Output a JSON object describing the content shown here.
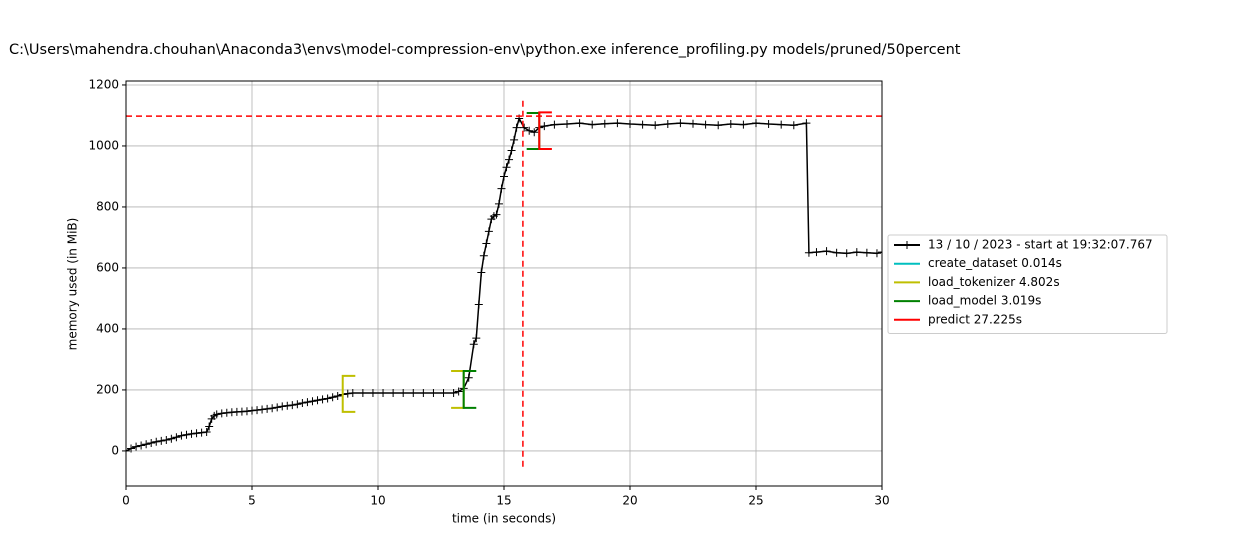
{
  "chart_data": {
    "type": "line",
    "title": "C:\\Users\\mahendra.chouhan\\Anaconda3\\envs\\model-compression-env\\python.exe inference_profiling.py models/pruned/50percent",
    "xlabel": "time (in seconds)",
    "ylabel": "memory used (in MiB)",
    "xlim": [
      0,
      30
    ],
    "ylim": [
      -115,
      1213
    ],
    "xticks": [
      0,
      5,
      10,
      15,
      20,
      25,
      30
    ],
    "yticks": [
      0,
      200,
      400,
      600,
      800,
      1000,
      1200
    ],
    "grid": true,
    "legend": "right",
    "series": [
      {
        "name": "13 / 10 / 2023 - start at 19:32:07.767",
        "color": "#000000",
        "marker": "+",
        "x": [
          0,
          0.2,
          0.4,
          0.6,
          0.8,
          1.0,
          1.2,
          1.4,
          1.6,
          1.8,
          2.0,
          2.2,
          2.4,
          2.6,
          2.8,
          3.0,
          3.2,
          3.3,
          3.4,
          3.5,
          3.6,
          3.8,
          4.0,
          4.2,
          4.4,
          4.6,
          4.8,
          5.0,
          5.2,
          5.4,
          5.6,
          5.8,
          6.0,
          6.2,
          6.4,
          6.6,
          6.8,
          7.0,
          7.2,
          7.4,
          7.6,
          7.8,
          8.0,
          8.2,
          8.4,
          8.6,
          8.8,
          9.0,
          9.4,
          9.8,
          10.2,
          10.6,
          11.0,
          11.4,
          11.8,
          12.2,
          12.6,
          13.0,
          13.2,
          13.4,
          13.6,
          13.8,
          13.9,
          14.0,
          14.1,
          14.2,
          14.3,
          14.4,
          14.5,
          14.6,
          14.7,
          14.8,
          14.9,
          15.0,
          15.1,
          15.2,
          15.3,
          15.4,
          15.5,
          15.6,
          15.8,
          16.0,
          16.2,
          16.4,
          16.6,
          17.0,
          17.5,
          18,
          18.5,
          19,
          19.5,
          20,
          20.5,
          21,
          21.5,
          22,
          22.5,
          23,
          23.5,
          24,
          24.5,
          25,
          25.5,
          26,
          26.5,
          27,
          27.1,
          27.4,
          27.8,
          28.2,
          28.6,
          29,
          29.4,
          29.8,
          30
        ],
        "values": [
          0,
          8,
          14,
          18,
          22,
          26,
          30,
          33,
          36,
          40,
          45,
          50,
          53,
          56,
          58,
          60,
          62,
          80,
          105,
          115,
          120,
          123,
          125,
          127,
          128,
          129,
          130,
          132,
          134,
          136,
          138,
          140,
          143,
          146,
          148,
          150,
          153,
          157,
          160,
          163,
          166,
          169,
          172,
          176,
          180,
          185,
          188,
          190,
          190,
          190,
          190,
          190,
          190,
          190,
          190,
          190,
          190,
          190,
          195,
          205,
          240,
          350,
          370,
          480,
          585,
          640,
          680,
          720,
          760,
          770,
          775,
          810,
          860,
          900,
          930,
          955,
          985,
          1020,
          1060,
          1090,
          1060,
          1050,
          1045,
          1060,
          1065,
          1070,
          1072,
          1075,
          1070,
          1073,
          1075,
          1072,
          1070,
          1068,
          1072,
          1075,
          1073,
          1070,
          1068,
          1072,
          1070,
          1075,
          1072,
          1070,
          1068,
          1075,
          650,
          652,
          655,
          650,
          648,
          652,
          650,
          648,
          652
        ]
      }
    ],
    "functions": [
      {
        "name": "create_dataset 0.014s",
        "color": "#00bfbf",
        "brackets": []
      },
      {
        "name": "load_tokenizer 4.802s",
        "color": "#bfbf00",
        "brackets": [
          {
            "x": 8.6,
            "side": "start",
            "low": 128,
            "high": 246
          },
          {
            "x": 13.4,
            "side": "end",
            "low": 141,
            "high": 262
          }
        ]
      },
      {
        "name": "load_model 3.019s",
        "color": "#008000",
        "brackets": [
          {
            "x": 13.4,
            "side": "start",
            "low": 141,
            "high": 262
          },
          {
            "x": 16.4,
            "side": "end",
            "low": 990,
            "high": 1108
          }
        ]
      },
      {
        "name": "predict 27.225s",
        "color": "#ff0000",
        "brackets": [
          {
            "x": 16.4,
            "side": "start",
            "low": 990,
            "high": 1110
          }
        ]
      }
    ],
    "hline": 1098,
    "vline": {
      "x": 15.75,
      "y": [
        -52,
        1154
      ]
    },
    "line_color": "#ff0000"
  }
}
